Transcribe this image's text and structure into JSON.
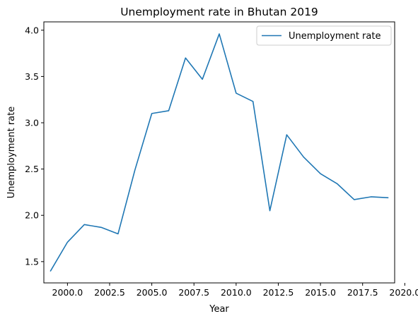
{
  "chart_data": {
    "type": "line",
    "title": "Unemployment rate in Bhutan 2019",
    "xlabel": "Year",
    "ylabel": "Unemployment rate",
    "xlim": [
      1998.6,
      2019.4
    ],
    "ylim": [
      1.27,
      4.09
    ],
    "x_ticks": [
      2000.0,
      2002.5,
      2005.0,
      2007.5,
      2010.0,
      2012.5,
      2015.0,
      2017.5,
      2020.0
    ],
    "x_tick_labels": [
      "2000.0",
      "2002.5",
      "2005.0",
      "2007.5",
      "2010.0",
      "2012.5",
      "2015.0",
      "2017.5",
      "2020.0"
    ],
    "y_ticks": [
      1.5,
      2.0,
      2.5,
      3.0,
      3.5,
      4.0
    ],
    "y_tick_labels": [
      "1.5",
      "2.0",
      "2.5",
      "3.0",
      "3.5",
      "4.0"
    ],
    "grid": false,
    "legend_position": "top-right",
    "series": [
      {
        "name": "Unemployment rate",
        "color": "#1f77b4",
        "x": [
          1999,
          2000,
          2001,
          2002,
          2003,
          2004,
          2005,
          2006,
          2007,
          2008,
          2009,
          2010,
          2011,
          2012,
          2013,
          2014,
          2015,
          2016,
          2017,
          2018,
          2019
        ],
        "y": [
          1.4,
          1.71,
          1.9,
          1.87,
          1.8,
          2.49,
          3.1,
          3.13,
          3.7,
          3.47,
          3.96,
          3.32,
          3.23,
          2.05,
          2.87,
          2.63,
          2.45,
          2.34,
          2.17,
          2.2,
          2.19
        ]
      }
    ]
  }
}
